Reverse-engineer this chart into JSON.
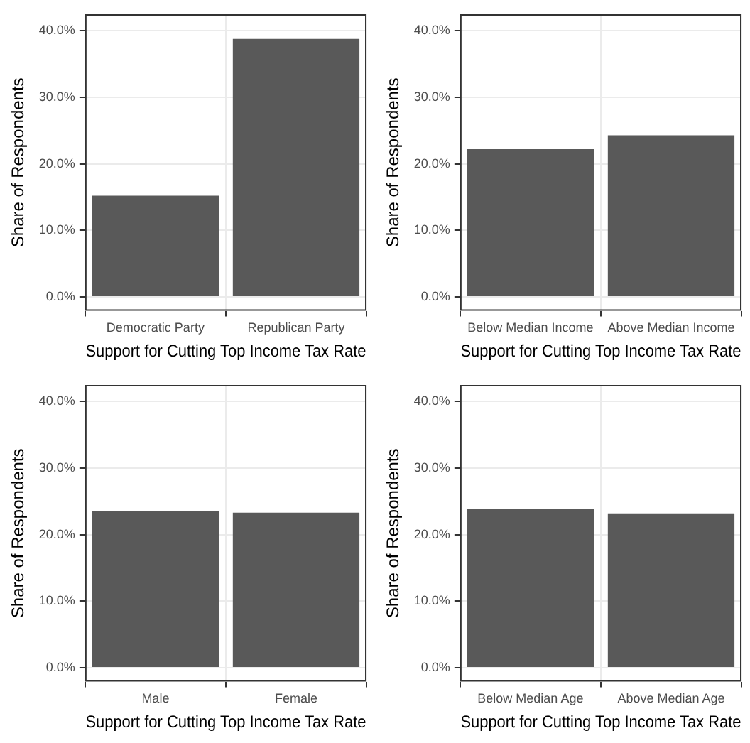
{
  "chart_data": [
    {
      "type": "bar",
      "xlabel": "Support for Cutting Top Income Tax Rate",
      "ylabel": "Share of Respondents",
      "categories": [
        "Democratic Party",
        "Republican Party"
      ],
      "values": [
        15.2,
        38.8
      ],
      "color": "#595959",
      "ylim": [
        -2.1,
        42.5
      ],
      "yticks": [
        {
          "value": 0,
          "label": "0.0%"
        },
        {
          "value": 10,
          "label": "10.0%"
        },
        {
          "value": 20,
          "label": "20.0%"
        },
        {
          "value": 30,
          "label": "30.0%"
        },
        {
          "value": 40,
          "label": "40.0%"
        }
      ],
      "grid": true,
      "legend": false
    },
    {
      "type": "bar",
      "xlabel": "Support for Cutting Top Income Tax Rate",
      "ylabel": "Share of Respondents",
      "categories": [
        "Below Median Income",
        "Above Median Income"
      ],
      "values": [
        22.2,
        24.3
      ],
      "color": "#595959",
      "ylim": [
        -2.1,
        42.5
      ],
      "yticks": [
        {
          "value": 0,
          "label": "0.0%"
        },
        {
          "value": 10,
          "label": "10.0%"
        },
        {
          "value": 20,
          "label": "20.0%"
        },
        {
          "value": 30,
          "label": "30.0%"
        },
        {
          "value": 40,
          "label": "40.0%"
        }
      ],
      "grid": true,
      "legend": false
    },
    {
      "type": "bar",
      "xlabel": "Support for Cutting Top Income Tax Rate",
      "ylabel": "Share of Respondents",
      "categories": [
        "Male",
        "Female"
      ],
      "values": [
        23.5,
        23.3
      ],
      "color": "#595959",
      "ylim": [
        -2.1,
        42.5
      ],
      "yticks": [
        {
          "value": 0,
          "label": "0.0%"
        },
        {
          "value": 10,
          "label": "10.0%"
        },
        {
          "value": 20,
          "label": "20.0%"
        },
        {
          "value": 30,
          "label": "30.0%"
        },
        {
          "value": 40,
          "label": "40.0%"
        }
      ],
      "grid": true,
      "legend": false
    },
    {
      "type": "bar",
      "xlabel": "Support for Cutting Top Income Tax Rate",
      "ylabel": "Share of Respondents",
      "categories": [
        "Below Median Age",
        "Above Median Age"
      ],
      "values": [
        23.8,
        23.2
      ],
      "color": "#595959",
      "ylim": [
        -2.1,
        42.5
      ],
      "yticks": [
        {
          "value": 0,
          "label": "0.0%"
        },
        {
          "value": 10,
          "label": "10.0%"
        },
        {
          "value": 20,
          "label": "20.0%"
        },
        {
          "value": 30,
          "label": "30.0%"
        },
        {
          "value": 40,
          "label": "40.0%"
        }
      ],
      "grid": true,
      "legend": false
    }
  ]
}
